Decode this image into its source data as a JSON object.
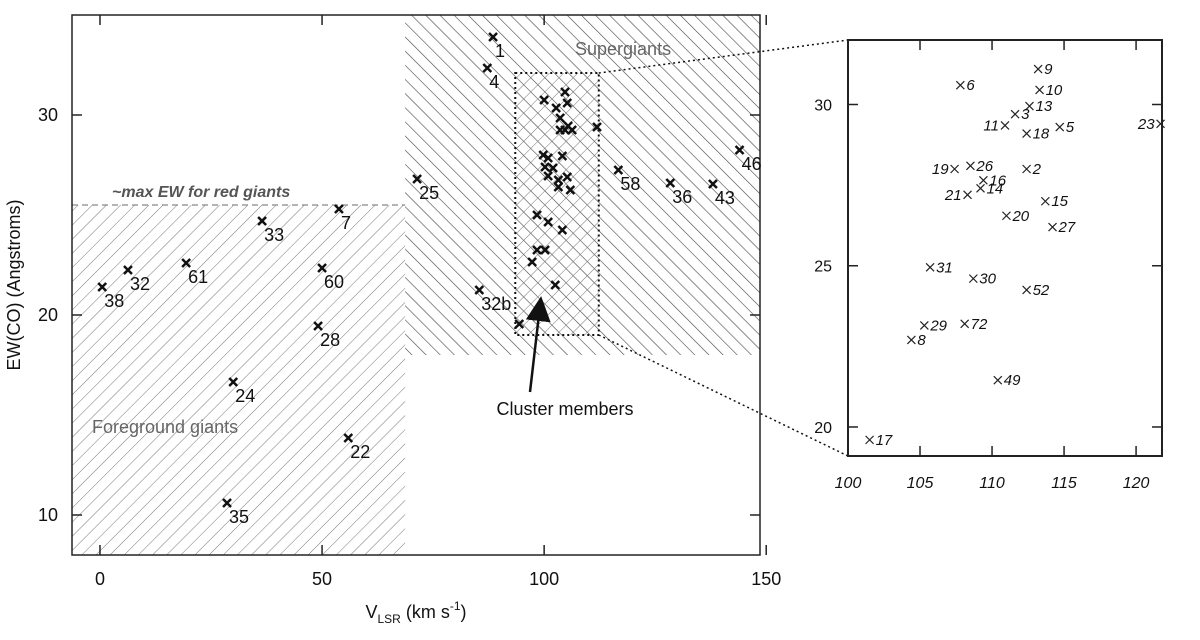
{
  "chart_data": [
    {
      "type": "scatter",
      "xlabel": [
        "V",
        "LSR",
        " (km s",
        "-1",
        ")"
      ],
      "ylabel": "EW(CO) (Angstroms)",
      "xlim": [
        -6.3,
        148.6
      ],
      "ylim": [
        8,
        35
      ],
      "xticks": [
        0,
        50,
        100,
        150
      ],
      "yticks": [
        10,
        20,
        30
      ],
      "color": "#111111",
      "regions": [
        {
          "label": "Foreground giants",
          "hatch": "/",
          "xlim": [
            -6.3,
            68.7
          ],
          "ylim": [
            8,
            25.5
          ]
        },
        {
          "label": "Supergiants",
          "hatch": "\\",
          "xlim": [
            68.7,
            148.6
          ],
          "ylim": [
            18,
            35
          ]
        }
      ],
      "threshold": {
        "label": "~max EW for red giants",
        "y": 25.5
      },
      "zoom_box": {
        "xlim": [
          93.5,
          112.3
        ],
        "ylim": [
          19,
          32.1
        ]
      },
      "annotation": "Cluster members",
      "points": {
        "labels": [
          "1",
          "4",
          "25",
          "58",
          "36",
          "43",
          "46",
          "33",
          "7",
          "61",
          "60",
          "32",
          "38",
          "28",
          "32b",
          "24",
          "22",
          "35"
        ],
        "x": [
          88.5,
          87.2,
          71.4,
          116.7,
          128.4,
          138,
          144,
          36.5,
          53.8,
          19.4,
          50,
          6.3,
          0.5,
          49.1,
          85.4,
          30,
          55.9,
          28.6
        ],
        "y": [
          33.9,
          32.35,
          26.8,
          27.25,
          26.6,
          26.55,
          28.25,
          24.7,
          25.3,
          22.6,
          22.35,
          22.25,
          21.4,
          19.45,
          21.25,
          16.65,
          13.85,
          10.6
        ]
      },
      "cluster": {
        "x": [
          100.0,
          102.7,
          104.7,
          105.2,
          103.6,
          105.4,
          103.6,
          104.7,
          106.3,
          111.9,
          99.8,
          100.9,
          104.1,
          100.2,
          102,
          100.9,
          103.2,
          105.2,
          105.9,
          103.2,
          98.4,
          100.9,
          104.1,
          98.4,
          100.2,
          97.3,
          102.5,
          94.4
        ],
        "y": [
          30.75,
          30.35,
          31.15,
          30.6,
          29.85,
          29.45,
          29.25,
          29.25,
          29.25,
          29.4,
          28,
          27.85,
          27.95,
          27.4,
          27.35,
          26.95,
          26.75,
          26.9,
          26.25,
          26.4,
          25,
          24.65,
          24.25,
          23.25,
          23.25,
          22.65,
          21.5,
          19.55
        ]
      }
    },
    {
      "type": "scatter",
      "xlim": [
        100,
        121.8
      ],
      "ylim": [
        19.1,
        32
      ],
      "xticks": [
        100,
        105,
        110,
        115,
        120
      ],
      "yticks": [
        20,
        25,
        30
      ],
      "color": "#222222",
      "points": {
        "labels": [
          "9",
          "6",
          "10",
          "13",
          "3",
          "11",
          "18",
          "5",
          "23",
          "19",
          "26",
          "2",
          "16",
          "21",
          "14",
          "15",
          "20",
          "27",
          "31",
          "30",
          "52",
          "29",
          "72",
          "8",
          "49",
          "17"
        ],
        "x": [
          113.2,
          107.8,
          113.3,
          112.6,
          111.6,
          110.9,
          112.4,
          114.7,
          121.7,
          107.4,
          108.5,
          112.4,
          109.4,
          108.3,
          109.2,
          113.7,
          111.0,
          114.2,
          105.7,
          108.7,
          112.4,
          105.3,
          108.1,
          104.4,
          110.4,
          101.5
        ],
        "y": [
          31.1,
          30.6,
          30.45,
          29.95,
          29.7,
          29.35,
          29.1,
          29.3,
          29.4,
          28.0,
          28.1,
          28.0,
          27.65,
          27.2,
          27.4,
          27.0,
          26.55,
          26.2,
          24.95,
          24.6,
          24.25,
          23.15,
          23.2,
          22.7,
          21.45,
          19.6
        ],
        "label_side": [
          "right",
          "right",
          "right",
          "right",
          "right",
          "left",
          "right",
          "right",
          "left",
          "left",
          "right",
          "right",
          "right",
          "left",
          "right",
          "right",
          "right",
          "right",
          "right",
          "right",
          "right",
          "right",
          "right",
          "right",
          "right",
          "right"
        ]
      }
    }
  ]
}
